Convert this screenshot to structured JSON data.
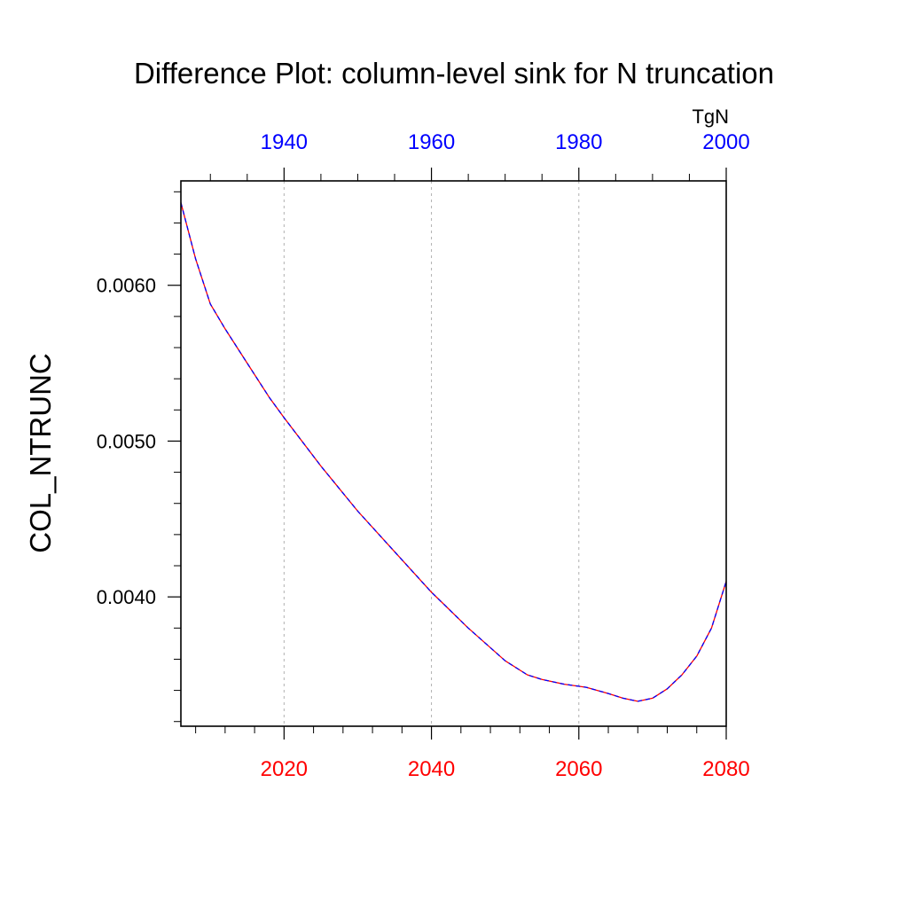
{
  "chart_data": {
    "type": "line",
    "title": "Difference Plot: column-level sink for N truncation",
    "units": "TgN",
    "ylabel": "COL_NTRUNC",
    "xlabel": "",
    "bottom_axis": {
      "color": "#ff0000",
      "xlim": [
        2006,
        2080
      ],
      "ticks": [
        2020,
        2040,
        2060,
        2080
      ],
      "tick_labels": [
        "2020",
        "2040",
        "2060",
        "2080"
      ],
      "minor_step": 4
    },
    "top_axis": {
      "color": "#0000ff",
      "xlim": [
        1926,
        2000
      ],
      "ticks": [
        1940,
        1960,
        1980,
        2000
      ],
      "tick_labels": [
        "1940",
        "1960",
        "1980",
        "2000"
      ],
      "minor_step": 5
    },
    "y_axis": {
      "ylim": [
        0.00317,
        0.00667
      ],
      "ticks": [
        0.004,
        0.005,
        0.006
      ],
      "tick_labels": [
        "0.0040",
        "0.0050",
        "0.0060"
      ],
      "minor_step": 0.0002
    },
    "grid": "vertical dashed at bottom-axis major ticks",
    "series": [
      {
        "color": "#ff0000",
        "style": "solid",
        "x": [
          2006,
          2008,
          2010,
          2012,
          2015,
          2018,
          2020,
          2025,
          2030,
          2035,
          2040,
          2045,
          2050,
          2053,
          2055,
          2058,
          2061,
          2064,
          2066,
          2068,
          2070,
          2072,
          2074,
          2076,
          2078,
          2080
        ],
        "y": [
          0.00653,
          0.00617,
          0.00588,
          0.00572,
          0.0055,
          0.00528,
          0.00515,
          0.00484,
          0.00455,
          0.00429,
          0.00403,
          0.0038,
          0.00359,
          0.0035,
          0.00347,
          0.00344,
          0.00342,
          0.00338,
          0.00335,
          0.00333,
          0.00335,
          0.00341,
          0.0035,
          0.00362,
          0.0038,
          0.0041
        ]
      },
      {
        "color": "#0000ff",
        "style": "dashed",
        "x": [
          2006,
          2008,
          2010,
          2012,
          2015,
          2018,
          2020,
          2025,
          2030,
          2035,
          2040,
          2045,
          2050,
          2053,
          2055,
          2058,
          2061,
          2064,
          2066,
          2068,
          2070,
          2072,
          2074,
          2076,
          2078,
          2080
        ],
        "y": [
          0.00653,
          0.00617,
          0.00588,
          0.00572,
          0.0055,
          0.00528,
          0.00515,
          0.00484,
          0.00455,
          0.00429,
          0.00403,
          0.0038,
          0.00359,
          0.0035,
          0.00347,
          0.00344,
          0.00342,
          0.00338,
          0.00335,
          0.00333,
          0.00335,
          0.00341,
          0.0035,
          0.00362,
          0.0038,
          0.0041
        ]
      }
    ]
  }
}
